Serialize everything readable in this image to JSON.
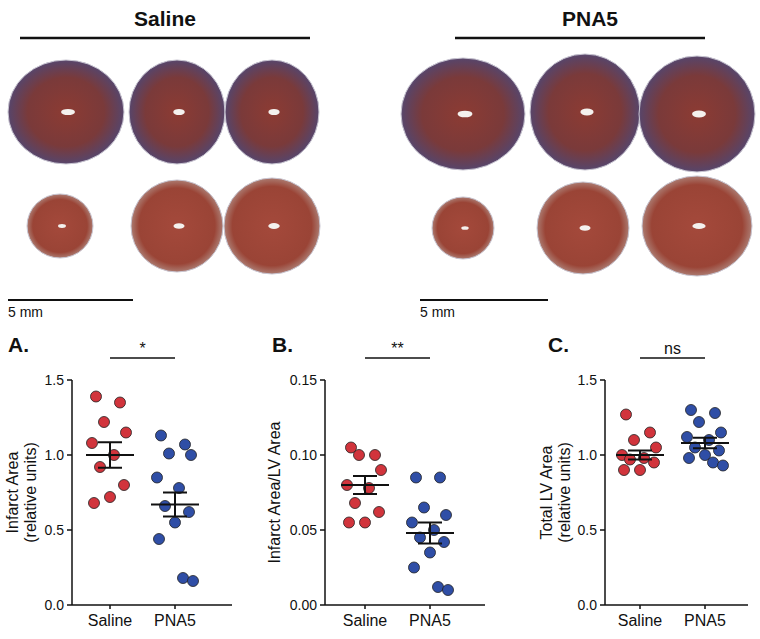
{
  "photo_panel": {
    "groups": [
      {
        "title": "Saline",
        "scale_bar": "5 mm"
      },
      {
        "title": "PNA5",
        "scale_bar": "5 mm"
      }
    ]
  },
  "chart_data": [
    {
      "type": "scatter",
      "panel": "A.",
      "y_label": [
        "Infarct Area",
        "(relative units)"
      ],
      "categories": [
        "Saline",
        "PNA5"
      ],
      "colors": [
        "#d1343c",
        "#2f4ea6"
      ],
      "values": [
        [
          1.39,
          1.35,
          1.22,
          1.15,
          1.08,
          1.0,
          0.92,
          0.8,
          0.72,
          0.68
        ],
        [
          1.13,
          1.07,
          1.01,
          1.0,
          0.85,
          0.78,
          0.66,
          0.62,
          0.55,
          0.44,
          0.18,
          0.16
        ]
      ],
      "means": [
        1.0,
        0.67
      ],
      "errors": [
        0.085,
        0.08
      ],
      "ylim": [
        0,
        1.5
      ],
      "yticks": [
        {
          "value": 0,
          "label": "0.0"
        },
        {
          "value": 0.5,
          "label": "0.5"
        },
        {
          "value": 1,
          "label": "1.0"
        },
        {
          "value": 1.5,
          "label": "1.5"
        }
      ],
      "annotation": "*"
    },
    {
      "type": "scatter",
      "panel": "B.",
      "y_label": [
        "Infarct Area/LV Area"
      ],
      "categories": [
        "Saline",
        "PNA5"
      ],
      "colors": [
        "#d1343c",
        "#2f4ea6"
      ],
      "values": [
        [
          0.105,
          0.1,
          0.1,
          0.09,
          0.08,
          0.078,
          0.068,
          0.062,
          0.055,
          0.055
        ],
        [
          0.085,
          0.085,
          0.065,
          0.06,
          0.055,
          0.05,
          0.045,
          0.042,
          0.035,
          0.025,
          0.012,
          0.01
        ]
      ],
      "means": [
        0.08,
        0.048
      ],
      "errors": [
        0.006,
        0.007
      ],
      "ylim": [
        0,
        0.15
      ],
      "yticks": [
        {
          "value": 0,
          "label": "0.00"
        },
        {
          "value": 0.05,
          "label": "0.05"
        },
        {
          "value": 0.1,
          "label": "0.10"
        },
        {
          "value": 0.15,
          "label": "0.15"
        }
      ],
      "annotation": "**"
    },
    {
      "type": "scatter",
      "panel": "C.",
      "y_label": [
        "Total LV Area",
        "(relative units)"
      ],
      "categories": [
        "Saline",
        "PNA5"
      ],
      "colors": [
        "#d1343c",
        "#2f4ea6"
      ],
      "values": [
        [
          1.27,
          1.15,
          1.1,
          1.05,
          1.0,
          0.98,
          0.97,
          0.95,
          0.9,
          0.9
        ],
        [
          1.3,
          1.28,
          1.22,
          1.15,
          1.12,
          1.1,
          1.05,
          1.03,
          1.0,
          0.98,
          0.95,
          0.93
        ]
      ],
      "means": [
        1.0,
        1.08
      ],
      "errors": [
        0.03,
        0.035
      ],
      "ylim": [
        0,
        1.5
      ],
      "yticks": [
        {
          "value": 0,
          "label": "0.0"
        },
        {
          "value": 0.5,
          "label": "0.5"
        },
        {
          "value": 1,
          "label": "1.0"
        },
        {
          "value": 1.5,
          "label": "1.5"
        }
      ],
      "annotation": "ns"
    }
  ]
}
